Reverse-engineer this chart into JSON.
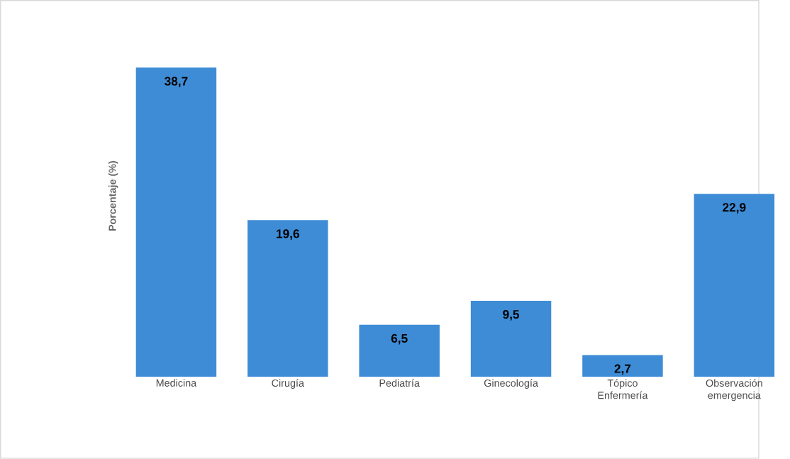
{
  "chart_data": {
    "type": "bar",
    "ylabel": "Porcentaje (%)",
    "categories": [
      "Medicina",
      "Cirugía",
      "Pediatría",
      "Ginecología",
      "Tópico Enfermería",
      "Observación emergencia"
    ],
    "values": [
      38.7,
      19.6,
      6.5,
      9.5,
      2.7,
      22.9
    ],
    "value_labels": [
      "38,7",
      "19,6",
      "6,5",
      "9,5",
      "2,7",
      "22,9"
    ],
    "color": "#3f8cd6"
  }
}
